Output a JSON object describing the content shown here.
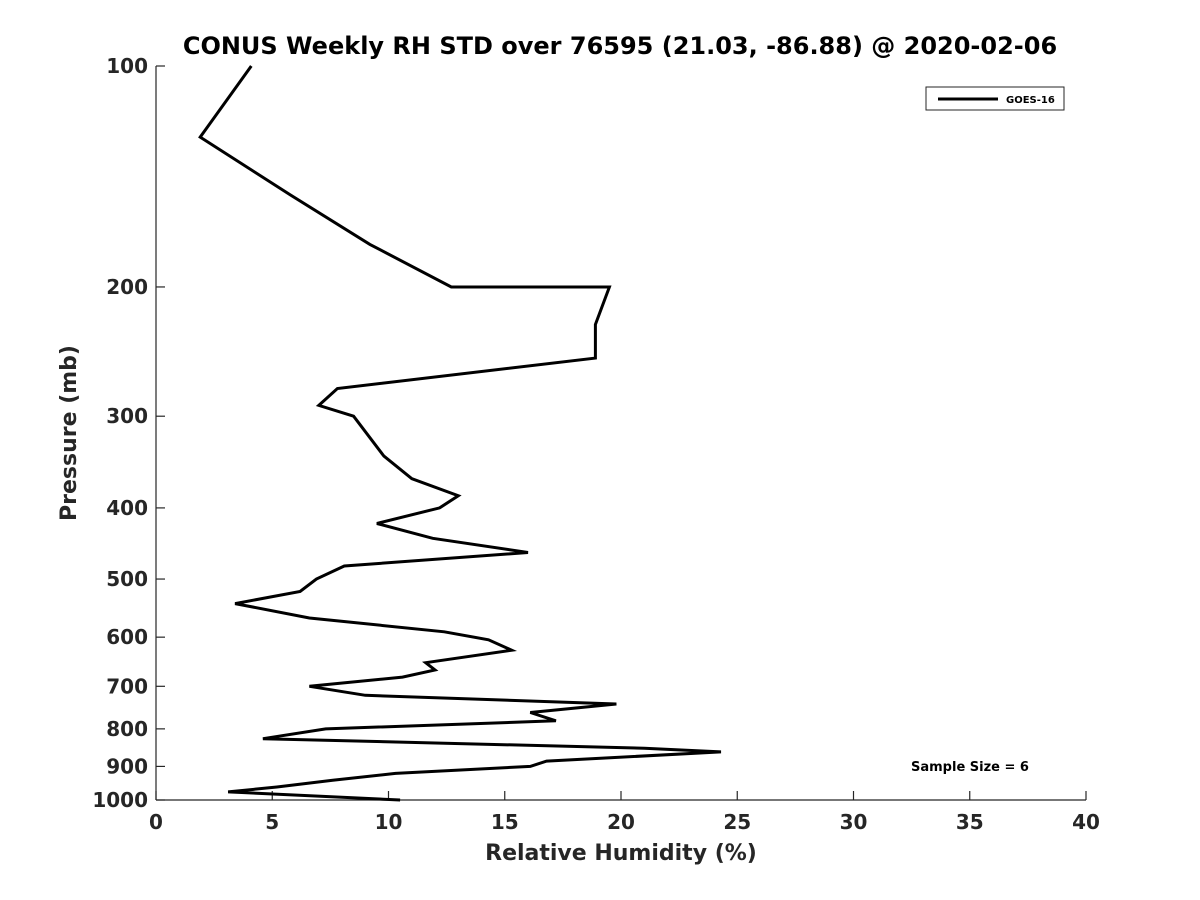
{
  "chart_data": {
    "type": "line",
    "title": "CONUS Weekly RH STD over 76595 (21.03, -86.88) @ 2020-02-06",
    "xlabel": "Relative Humidity (%)",
    "ylabel": "Pressure (mb)",
    "xlim": [
      0,
      40
    ],
    "ylim": [
      100,
      1000
    ],
    "y_scale": "log",
    "y_reversed": true,
    "grid": false,
    "x_ticks": [
      0,
      5,
      10,
      15,
      20,
      25,
      30,
      35,
      40
    ],
    "y_ticks": [
      100,
      200,
      300,
      400,
      500,
      600,
      700,
      800,
      900,
      1000
    ],
    "legend": {
      "position": "top-right",
      "entries": [
        "GOES-16"
      ]
    },
    "annotation": "Sample Size = 6",
    "series": [
      {
        "name": "GOES-16",
        "color": "#000000",
        "points": [
          [
            4.1,
            100
          ],
          [
            1.9,
            125
          ],
          [
            5.8,
            150
          ],
          [
            9.2,
            175
          ],
          [
            12.7,
            200
          ],
          [
            19.5,
            200
          ],
          [
            18.9,
            225
          ],
          [
            18.9,
            250
          ],
          [
            7.8,
            275
          ],
          [
            7.0,
            290
          ],
          [
            8.5,
            300
          ],
          [
            9.8,
            340
          ],
          [
            11.0,
            365
          ],
          [
            13.0,
            385
          ],
          [
            12.2,
            400
          ],
          [
            9.5,
            420
          ],
          [
            11.9,
            440
          ],
          [
            16.0,
            460
          ],
          [
            8.1,
            480
          ],
          [
            6.9,
            500
          ],
          [
            6.2,
            520
          ],
          [
            3.4,
            540
          ],
          [
            6.6,
            565
          ],
          [
            12.4,
            590
          ],
          [
            14.3,
            605
          ],
          [
            15.3,
            625
          ],
          [
            11.6,
            650
          ],
          [
            12.0,
            665
          ],
          [
            10.6,
            680
          ],
          [
            6.6,
            700
          ],
          [
            9.0,
            720
          ],
          [
            19.8,
            740
          ],
          [
            16.1,
            760
          ],
          [
            17.2,
            780
          ],
          [
            7.3,
            800
          ],
          [
            4.6,
            825
          ],
          [
            21.0,
            850
          ],
          [
            24.3,
            860
          ],
          [
            16.8,
            885
          ],
          [
            16.1,
            900
          ],
          [
            10.3,
            920
          ],
          [
            7.6,
            940
          ],
          [
            5.2,
            960
          ],
          [
            3.1,
            975
          ],
          [
            10.5,
            1000
          ]
        ]
      }
    ]
  }
}
